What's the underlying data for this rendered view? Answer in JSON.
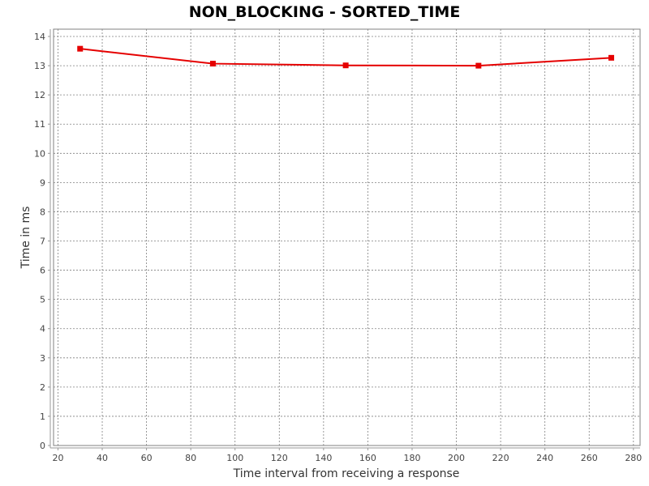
{
  "chart_data": {
    "type": "line",
    "title": "NON_BLOCKING - SORTED_TIME",
    "xlabel": "Time interval from receiving a response",
    "ylabel": "Time in ms",
    "xlim": [
      18,
      283
    ],
    "ylim": [
      0,
      14.25
    ],
    "x_ticks": [
      20,
      40,
      60,
      80,
      100,
      120,
      140,
      160,
      180,
      200,
      220,
      240,
      260,
      280
    ],
    "y_ticks": [
      0,
      1,
      2,
      3,
      4,
      5,
      6,
      7,
      8,
      9,
      10,
      11,
      12,
      13,
      14
    ],
    "grid": true,
    "series": [
      {
        "color": "#e50000",
        "marker": "square",
        "x": [
          30,
          90,
          150,
          210,
          270
        ],
        "y": [
          13.58,
          13.07,
          13.01,
          13.0,
          13.27
        ]
      }
    ]
  }
}
